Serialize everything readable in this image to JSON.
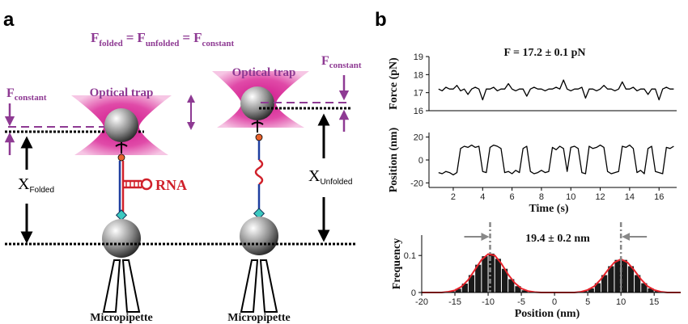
{
  "panel_a": {
    "label": "a",
    "equation": [
      {
        "base": "F",
        "sub": "folded"
      },
      "=",
      {
        "base": "F",
        "sub": "unfolded"
      },
      "=",
      {
        "base": "F",
        "sub": "constant"
      }
    ],
    "left_trap": {
      "trap_label": "Optical trap",
      "force_label": {
        "base": "F",
        "sub": "constant"
      },
      "extension_label": {
        "base": "X",
        "sub": "Folded"
      },
      "molecule_label": "RNA",
      "pipette_label": "Micropipette"
    },
    "right_trap": {
      "trap_label": "Optical trap",
      "force_label": {
        "base": "F",
        "sub": "constant"
      },
      "extension_label": {
        "base": "X",
        "sub": "Unfolded"
      },
      "pipette_label": "Micropipette"
    }
  },
  "panel_b": {
    "label": "b"
  },
  "chart_data": [
    {
      "type": "line",
      "title": "F = 17.2 ± 0.1 pN",
      "y_label": "Force (pN)",
      "color": "#000000",
      "xlim": [
        0.35,
        17.2
      ],
      "ylim": [
        16,
        19
      ],
      "yticks": [
        16,
        17,
        18,
        19
      ],
      "x": [
        1,
        1.25,
        1.5,
        1.75,
        2,
        2.25,
        2.5,
        2.75,
        3,
        3.25,
        3.5,
        3.75,
        4,
        4.25,
        4.5,
        4.75,
        5,
        5.25,
        5.5,
        5.75,
        6,
        6.25,
        6.5,
        6.75,
        7,
        7.25,
        7.5,
        7.75,
        8,
        8.25,
        8.5,
        8.75,
        9,
        9.25,
        9.5,
        9.75,
        10,
        10.25,
        10.5,
        10.75,
        11,
        11.25,
        11.5,
        11.75,
        12,
        12.25,
        12.5,
        12.75,
        13,
        13.25,
        13.5,
        13.75,
        14,
        14.25,
        14.5,
        14.75,
        15,
        15.25,
        15.5,
        15.75,
        16,
        16.25,
        16.5,
        16.75,
        17
      ],
      "values": [
        17.2,
        17.1,
        17.3,
        17.2,
        17.2,
        17.4,
        17.1,
        17.2,
        16.9,
        17.2,
        17.3,
        17.2,
        16.6,
        17.2,
        17.2,
        17.3,
        17.1,
        17.2,
        17.2,
        17.5,
        17.2,
        17.1,
        17.2,
        17.2,
        16.8,
        17.2,
        17.3,
        17.2,
        17.2,
        17.1,
        17.2,
        17.2,
        17.3,
        17.2,
        17.7,
        17.2,
        17.1,
        17.2,
        17.2,
        17.3,
        16.7,
        17.2,
        17.2,
        17.1,
        17.2,
        17.4,
        17.2,
        17.2,
        17.1,
        17.2,
        17.6,
        17.2,
        17.2,
        17.3,
        17.1,
        17.2,
        17.2,
        16.9,
        17.2,
        17.2,
        16.6,
        17.2,
        17.3,
        17.2,
        17.2
      ]
    },
    {
      "type": "line",
      "x_label": "Time (s)",
      "y_label": "Position (nm)",
      "color": "#000000",
      "xlim": [
        0.35,
        17.2
      ],
      "ylim": [
        -24,
        24
      ],
      "xticks": [
        2,
        4,
        6,
        8,
        10,
        12,
        14,
        16
      ],
      "yticks": [
        -20,
        0,
        20
      ],
      "x": [
        1,
        1.25,
        1.5,
        1.75,
        2,
        2.25,
        2.5,
        2.75,
        3,
        3.25,
        3.5,
        3.75,
        4,
        4.25,
        4.5,
        4.75,
        5,
        5.25,
        5.5,
        5.75,
        6,
        6.25,
        6.5,
        6.75,
        7,
        7.25,
        7.5,
        7.75,
        8,
        8.25,
        8.5,
        8.75,
        9,
        9.25,
        9.5,
        9.75,
        10,
        10.25,
        10.5,
        10.75,
        11,
        11.25,
        11.5,
        11.75,
        12,
        12.25,
        12.5,
        12.75,
        13,
        13.25,
        13.5,
        13.75,
        14,
        14.25,
        14.5,
        14.75,
        15,
        15.25,
        15.5,
        15.75,
        16,
        16.25,
        16.5,
        16.75,
        17
      ],
      "values": [
        -11,
        -12,
        -10,
        -11,
        -13,
        -11,
        10,
        12,
        11,
        13,
        11,
        12,
        -10,
        -11,
        11,
        13,
        12,
        10,
        -11,
        -10,
        -12,
        -9,
        -11,
        10,
        12,
        -10,
        -12,
        -11,
        -9,
        -11,
        -10,
        11,
        9,
        12,
        10,
        -10,
        11,
        12,
        10,
        -11,
        -12,
        12,
        10,
        11,
        13,
        11,
        -10,
        -12,
        -11,
        -10,
        12,
        11,
        13,
        10,
        -11,
        -9,
        -12,
        10,
        12,
        -10,
        -11,
        -12,
        11,
        10,
        12
      ]
    },
    {
      "type": "histogram",
      "annotation": "19.4 ± 0.2 nm",
      "annotation_lines": [
        -9.7,
        10
      ],
      "x_label": "Position (nm)",
      "y_label": "Frequency",
      "color": "#1a1a1a",
      "xlim": [
        -20,
        19
      ],
      "ylim": [
        0,
        0.155
      ],
      "xticks": [
        -20,
        -15,
        -10,
        -5,
        0,
        5,
        10,
        15
      ],
      "yticks": [
        0,
        0.1
      ],
      "bins": [
        -16,
        -15,
        -14,
        -13,
        -12,
        -11,
        -10,
        -9,
        -8,
        -7,
        -6,
        -5,
        -4,
        -3,
        -2,
        -1,
        0,
        1,
        2,
        3,
        4,
        5,
        6,
        7,
        8,
        9,
        10,
        11,
        12,
        13,
        14,
        15,
        16,
        17
      ],
      "counts": [
        0.003,
        0.01,
        0.024,
        0.047,
        0.075,
        0.098,
        0.105,
        0.091,
        0.064,
        0.036,
        0.017,
        0.006,
        0.001,
        0,
        0,
        0,
        0,
        0,
        0,
        0.001,
        0.004,
        0.011,
        0.025,
        0.047,
        0.071,
        0.088,
        0.088,
        0.071,
        0.047,
        0.025,
        0.011,
        0.004,
        0.001
      ],
      "fit": {
        "color": "#e8242c",
        "x": [
          -20,
          -19,
          -18,
          -17,
          -16,
          -15,
          -14,
          -13,
          -12,
          -11,
          -10,
          -9,
          -8,
          -7,
          -6,
          -5,
          -4,
          -3,
          -2,
          -1,
          0,
          1,
          2,
          3,
          4,
          5,
          6,
          7,
          8,
          9,
          10,
          11,
          12,
          13,
          14,
          15,
          16,
          17,
          18,
          19
        ],
        "values": [
          0,
          0,
          0,
          0,
          0.002,
          0.006,
          0.016,
          0.034,
          0.061,
          0.088,
          0.104,
          0.1,
          0.078,
          0.049,
          0.026,
          0.011,
          0.004,
          0.001,
          0,
          0,
          0,
          0,
          0,
          0,
          0.002,
          0.007,
          0.017,
          0.036,
          0.06,
          0.081,
          0.09,
          0.081,
          0.06,
          0.036,
          0.017,
          0.007,
          0.002,
          0,
          0,
          0
        ]
      }
    }
  ]
}
